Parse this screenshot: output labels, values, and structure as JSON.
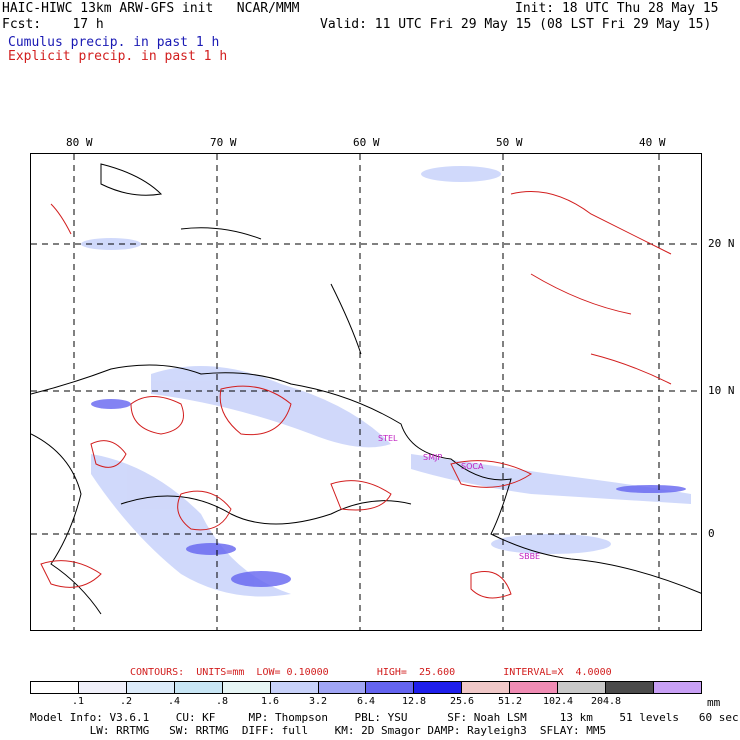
{
  "header": {
    "title": "HAIC-HIWC 13km ARW-GFS init   NCAR/MMM",
    "fcst": "Fcst:    17 h",
    "init": "Init: 18 UTC Thu 28 May 15",
    "valid": "Valid: 11 UTC Fri 29 May 15 (08 LST Fri 29 May 15)",
    "legend_cumulus": "Cumulus precip. in past 1 h",
    "legend_explicit": "Explicit precip. in past 1 h"
  },
  "map": {
    "lon_labels": [
      "80 W",
      "70 W",
      "60 W",
      "50 W",
      "40 W"
    ],
    "lat_labels": [
      "20 N",
      "10 N",
      "0"
    ],
    "stations": [
      "STEL",
      "SMJP",
      "SOCA",
      "SBBE"
    ]
  },
  "colorbar": {
    "contours_text": "CONTOURS:  UNITS=mm  LOW= 0.10000        HIGH=  25.600        INTERVAL=X  4.0000",
    "colors": [
      "#ffffff",
      "#f0f0fa",
      "#dcebfa",
      "#c8e6f5",
      "#e6f5f5",
      "#c8d2fa",
      "#a0a5f5",
      "#6464f0",
      "#1e1eeb",
      "#f0c8c8",
      "#f08cb4",
      "#c8c8c8",
      "#4b4b4b",
      "#c8a0f5"
    ],
    "ticks": [
      ".1",
      ".2",
      ".4",
      ".8",
      "1.6",
      "3.2",
      "6.4",
      "12.8",
      "25.6",
      "51.2",
      "102.4",
      "204.8"
    ],
    "unit": "mm"
  },
  "model_info": {
    "line1": "Model Info: V3.6.1    CU: KF     MP: Thompson    PBL: YSU      SF: Noah LSM     13 km    51 levels   60 sec",
    "line2": "         LW: RRTMG   SW: RRTMG  DIFF: full    KM: 2D Smagor DAMP: Rayleigh3  SFLAY: MM5"
  }
}
